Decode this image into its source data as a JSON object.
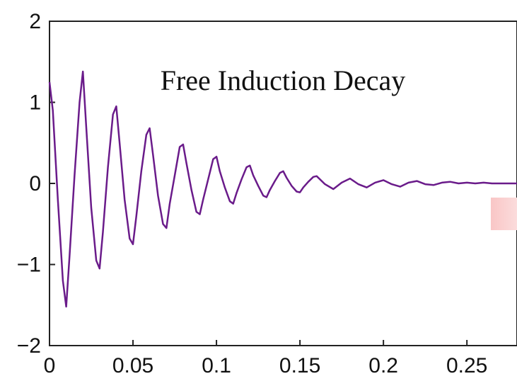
{
  "chart_data": {
    "type": "line",
    "annotation": "Free Induction Decay",
    "xlim": [
      0,
      0.28
    ],
    "ylim": [
      -2,
      2
    ],
    "x_ticks": [
      "0",
      "0.05",
      "0.1",
      "0.15",
      "0.2",
      "0.25"
    ],
    "x_tick_values": [
      0,
      0.05,
      0.1,
      0.15,
      0.2,
      0.25
    ],
    "y_ticks": [
      "2",
      "1",
      "0",
      "−1",
      "−2"
    ],
    "y_tick_values": [
      2,
      1,
      0,
      -1,
      -2
    ],
    "grid": false,
    "series": [
      {
        "color": "#6a1b8a",
        "x": [
          0,
          0.002,
          0.005,
          0.008,
          0.01,
          0.012,
          0.015,
          0.018,
          0.02,
          0.022,
          0.025,
          0.028,
          0.03,
          0.032,
          0.035,
          0.038,
          0.04,
          0.042,
          0.045,
          0.048,
          0.05,
          0.052,
          0.055,
          0.058,
          0.06,
          0.062,
          0.065,
          0.068,
          0.07,
          0.072,
          0.075,
          0.078,
          0.08,
          0.082,
          0.085,
          0.088,
          0.09,
          0.092,
          0.095,
          0.098,
          0.1,
          0.102,
          0.105,
          0.108,
          0.11,
          0.112,
          0.115,
          0.118,
          0.12,
          0.122,
          0.125,
          0.128,
          0.13,
          0.132,
          0.135,
          0.138,
          0.14,
          0.142,
          0.145,
          0.148,
          0.15,
          0.152,
          0.155,
          0.158,
          0.16,
          0.165,
          0.17,
          0.175,
          0.18,
          0.185,
          0.19,
          0.195,
          0.2,
          0.205,
          0.21,
          0.215,
          0.22,
          0.225,
          0.23,
          0.235,
          0.24,
          0.245,
          0.25,
          0.255,
          0.26,
          0.265,
          0.27,
          0.275,
          0.28
        ],
        "values": [
          1.25,
          0.9,
          -0.2,
          -1.2,
          -1.52,
          -0.9,
          0.1,
          1.0,
          1.38,
          0.7,
          -0.3,
          -0.95,
          -1.05,
          -0.6,
          0.2,
          0.85,
          0.95,
          0.5,
          -0.2,
          -0.68,
          -0.75,
          -0.4,
          0.15,
          0.6,
          0.68,
          0.35,
          -0.15,
          -0.5,
          -0.55,
          -0.25,
          0.1,
          0.45,
          0.48,
          0.25,
          -0.08,
          -0.35,
          -0.38,
          -0.2,
          0.05,
          0.3,
          0.33,
          0.15,
          -0.05,
          -0.22,
          -0.25,
          -0.12,
          0.05,
          0.2,
          0.22,
          0.1,
          -0.03,
          -0.15,
          -0.17,
          -0.08,
          0.03,
          0.13,
          0.15,
          0.07,
          -0.03,
          -0.1,
          -0.11,
          -0.05,
          0.02,
          0.08,
          0.09,
          -0.01,
          -0.07,
          0.01,
          0.06,
          -0.01,
          -0.05,
          0.01,
          0.04,
          -0.01,
          -0.04,
          0.01,
          0.03,
          -0.01,
          -0.02,
          0.01,
          0.02,
          0.0,
          0.01,
          0.0,
          0.01,
          0.0,
          0.0,
          0.0,
          0.0
        ]
      }
    ]
  }
}
